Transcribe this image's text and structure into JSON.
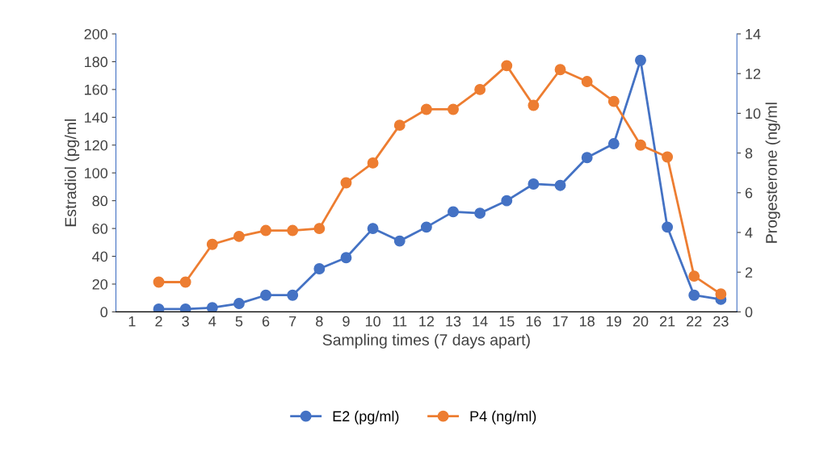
{
  "chart_data": {
    "type": "line",
    "xlabel": "Sampling times (7 days apart)",
    "ylabel": "Estradiol (pg/ml",
    "y2label": "Progesterone (ng/ml",
    "categories": [
      "1",
      "2",
      "3",
      "4",
      "5",
      "6",
      "7",
      "8",
      "9",
      "10",
      "11",
      "12",
      "13",
      "14",
      "15",
      "16",
      "17",
      "18",
      "19",
      "20",
      "21",
      "22",
      "23"
    ],
    "series": [
      {
        "name": "E2 (pg/ml)",
        "color": "#4472c4",
        "values": [
          null,
          2,
          2,
          3,
          6,
          12,
          12,
          31,
          39,
          60,
          51,
          61,
          72,
          71,
          80,
          92,
          91,
          111,
          121,
          181,
          61,
          12,
          9
        ]
      },
      {
        "name": "P4 (ng/ml)",
        "color": "#ed7d31",
        "axis": "y2",
        "values": [
          null,
          1.5,
          1.5,
          3.4,
          3.8,
          4.1,
          4.1,
          4.2,
          6.5,
          7.5,
          9.4,
          10.2,
          10.2,
          11.2,
          12.4,
          10.4,
          12.2,
          11.6,
          10.6,
          8.4,
          7.8,
          1.8,
          0.9
        ]
      }
    ],
    "ylim": [
      0,
      200
    ],
    "yticks": [
      0,
      20,
      40,
      60,
      80,
      100,
      120,
      140,
      160,
      180,
      200
    ],
    "y2lim": [
      0,
      14
    ],
    "y2ticks": [
      0,
      2,
      4,
      6,
      8,
      10,
      12,
      14
    ],
    "marker": "circle",
    "line_style": "solid",
    "grid": false,
    "legend": "bottom"
  }
}
